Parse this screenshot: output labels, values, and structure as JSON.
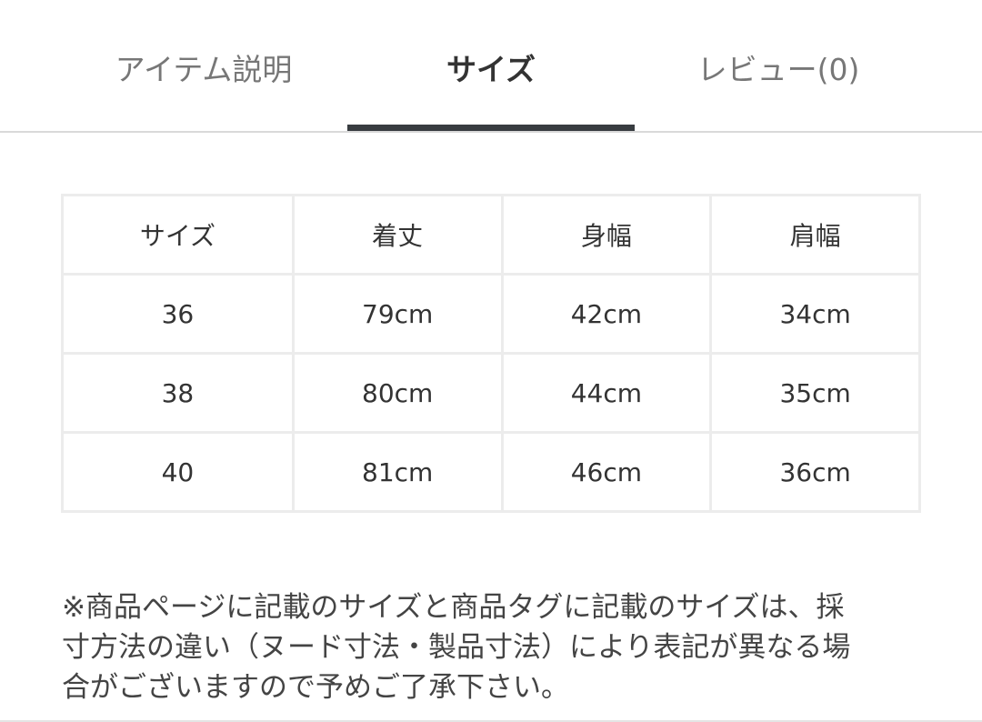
{
  "tabs": [
    {
      "label": "アイテム説明",
      "active": false
    },
    {
      "label": "サイズ",
      "active": true
    },
    {
      "label": "レビュー(0)",
      "active": false
    }
  ],
  "size_table": {
    "headers": [
      "サイズ",
      "着丈",
      "身幅",
      "肩幅"
    ],
    "rows": [
      [
        "36",
        "79cm",
        "42cm",
        "34cm"
      ],
      [
        "38",
        "80cm",
        "44cm",
        "35cm"
      ],
      [
        "40",
        "81cm",
        "46cm",
        "36cm"
      ]
    ]
  },
  "note": {
    "lines": [
      "※商品ページに記載のサイズと商品タグに記載のサイズは、採",
      "寸方法の違い（ヌード寸法・製品寸法）により表記が異なる場",
      "合がございますので予めご了承下さい。"
    ]
  },
  "colors": {
    "active_underline": "#383c40",
    "border": "#ececec"
  }
}
